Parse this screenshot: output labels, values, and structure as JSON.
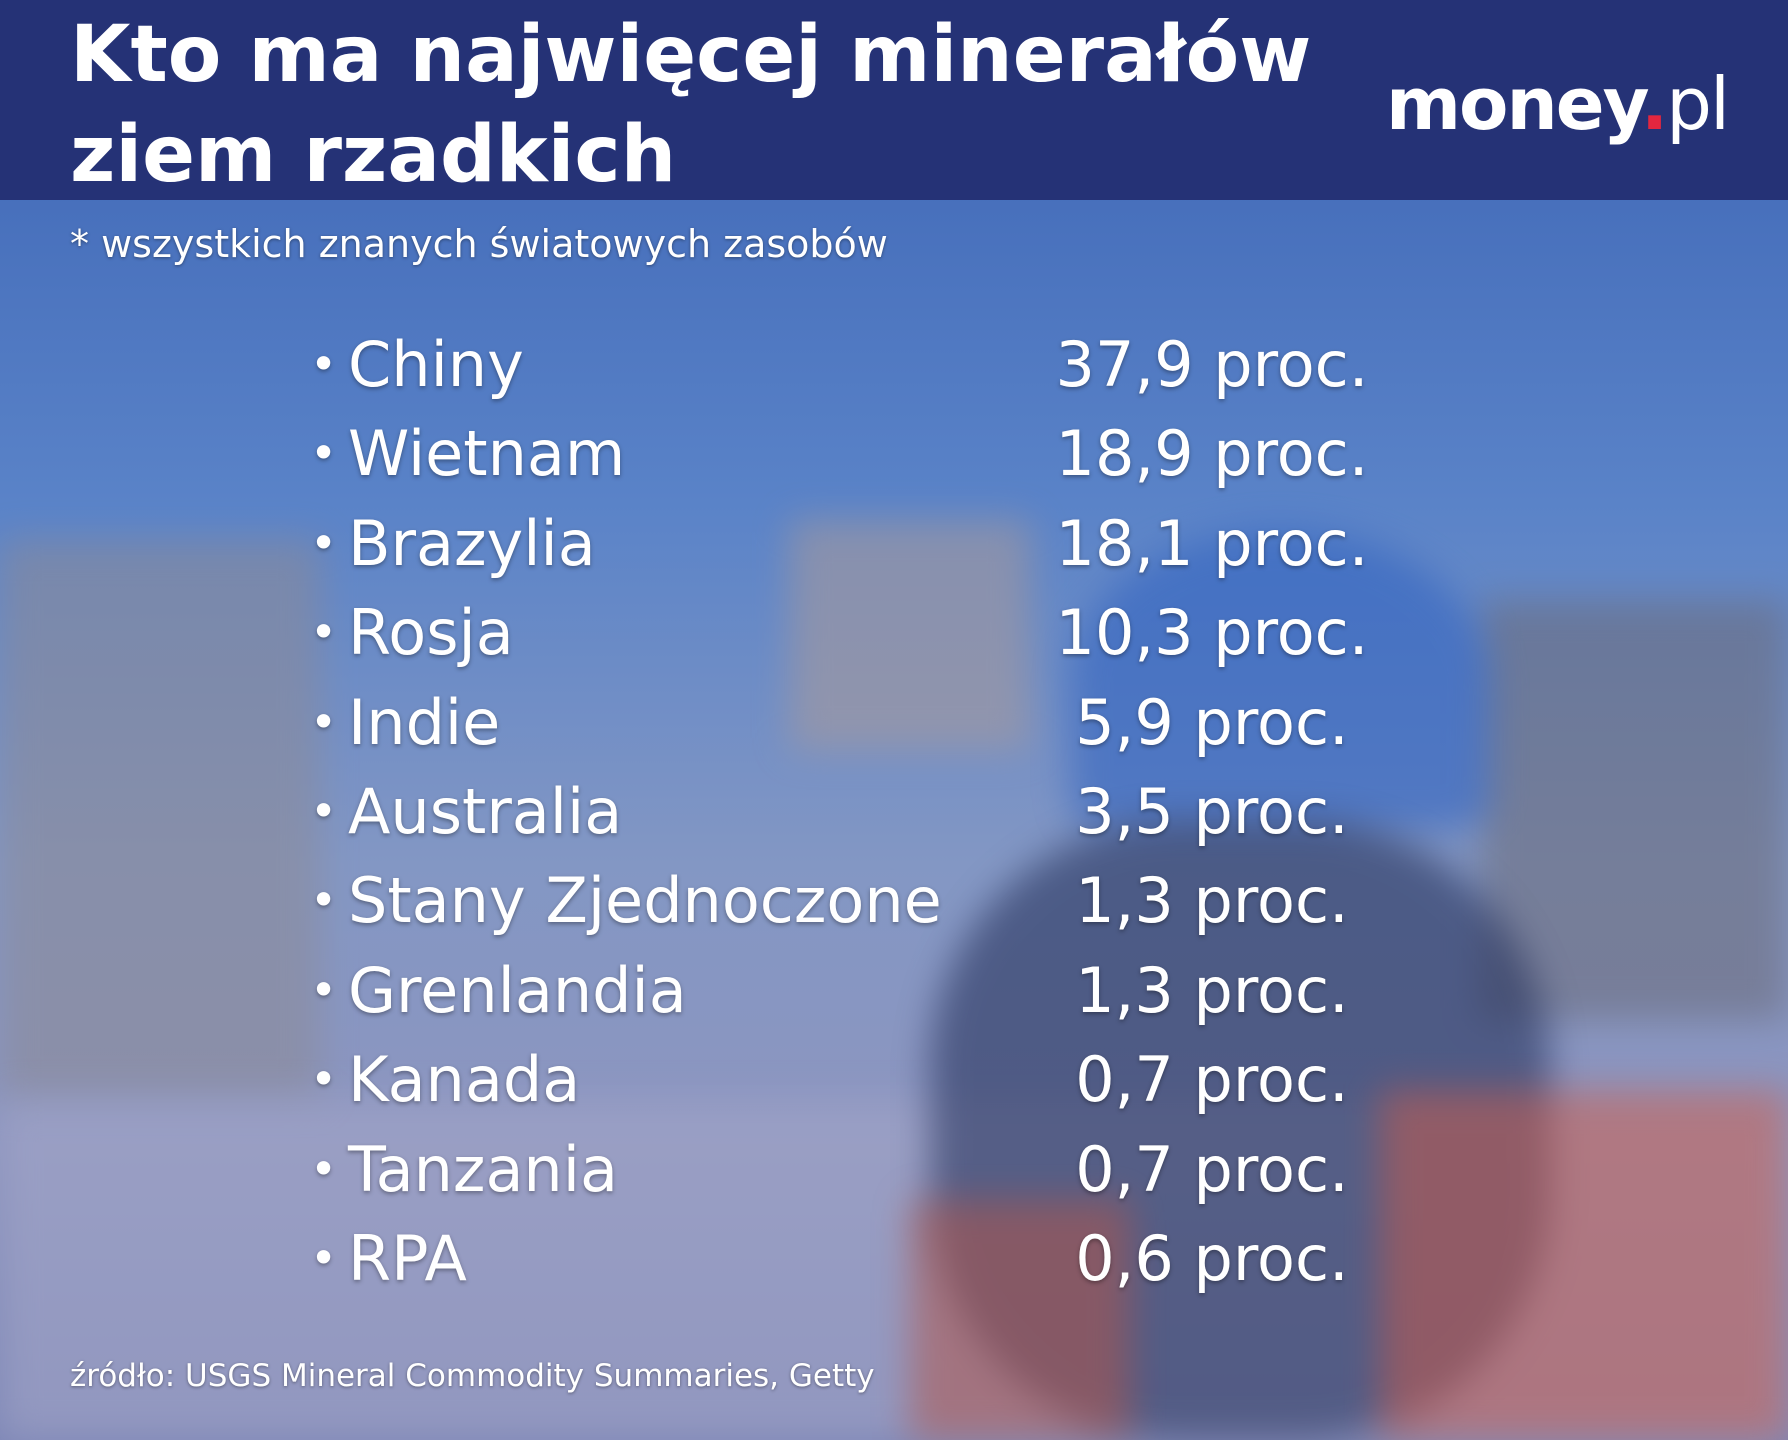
{
  "header": {
    "title_lines": [
      "Kto ma najwięcej minerałów",
      "ziem rzadkich"
    ],
    "logo": [
      "money",
      ".",
      "pl"
    ]
  },
  "subtitle": "* wszystkich znanych światowych zasobów",
  "table": {
    "rows": [
      [
        "Chiny",
        "37,9 proc."
      ],
      [
        "Wietnam",
        "18,9 proc."
      ],
      [
        "Brazylia",
        "18,1 proc."
      ],
      [
        "Rosja",
        "10,3 proc."
      ],
      [
        "Indie",
        "5,9 proc."
      ],
      [
        "Australia",
        "3,5 proc."
      ],
      [
        "Stany Zjednoczone",
        "1,3 proc."
      ],
      [
        "Grenlandia",
        "1,3 proc."
      ],
      [
        "Kanada",
        "0,7 proc."
      ],
      [
        "Tanzania",
        "0,7 proc."
      ],
      [
        "RPA",
        "0,6 proc."
      ]
    ]
  },
  "source": "źródło: USGS Mineral Commodity Summaries, Getty"
}
